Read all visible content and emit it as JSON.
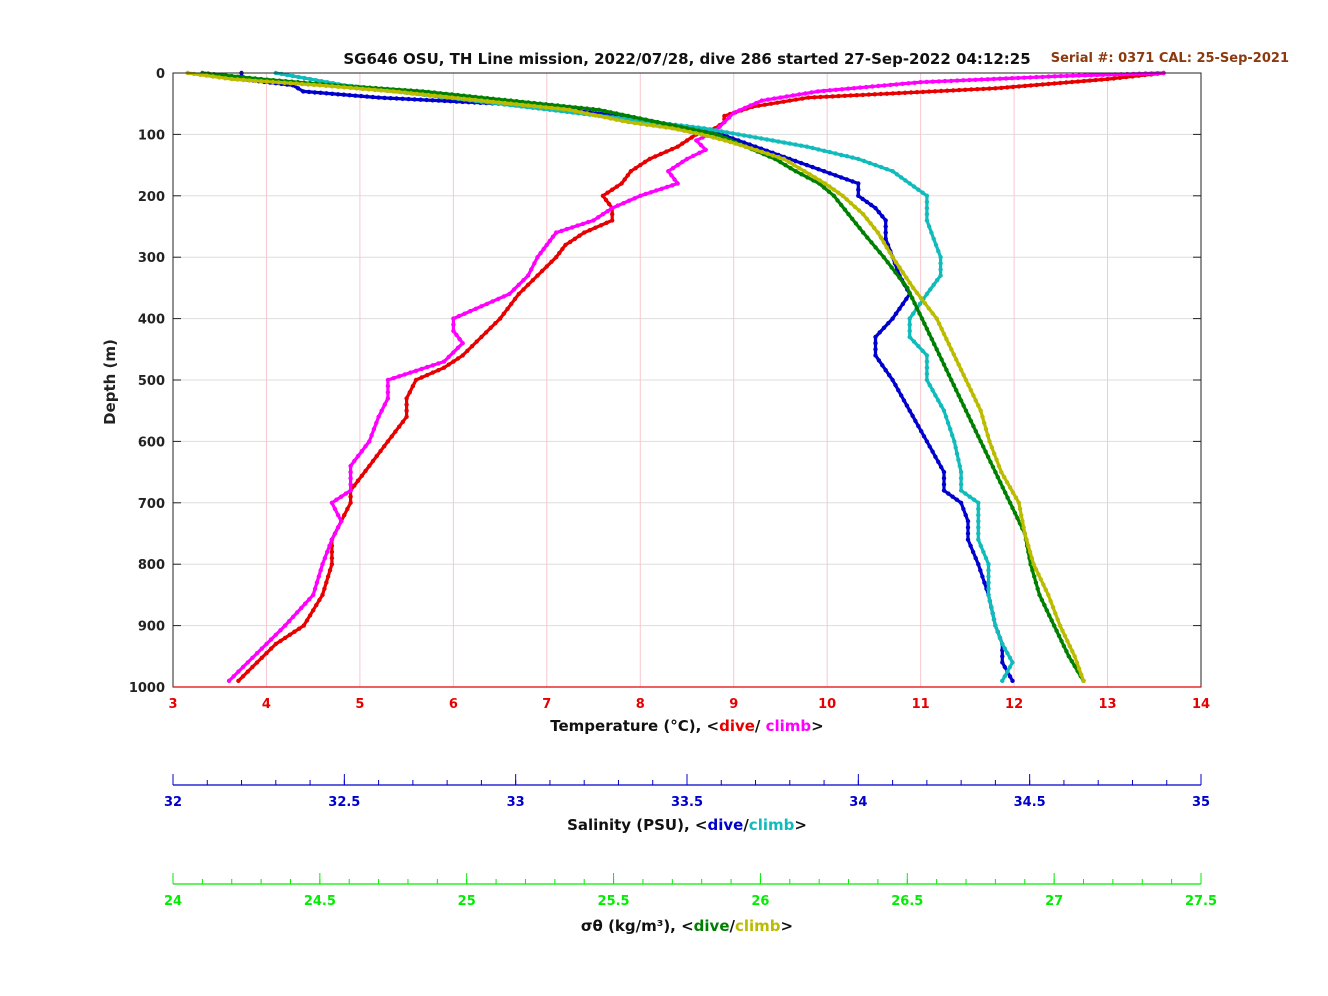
{
  "chart_data": {
    "type": "line",
    "title": "SG646 OSU, TH Line mission, 2022/07/28, dive 286 started 27-Sep-2022 04:12:25",
    "serial_text": "Serial #: 0371  CAL: 25-Sep-2021",
    "ylabel": "Depth (m)",
    "ylim": [
      0,
      1000
    ],
    "y_reversed": true,
    "y_ticks": [
      0,
      100,
      200,
      300,
      400,
      500,
      600,
      700,
      800,
      900,
      1000
    ],
    "grid": true,
    "axes": [
      {
        "id": "temperature",
        "label_prefix": "Temperature (°C), <",
        "label_dive": "dive",
        "label_sep": "/ ",
        "label_climb": "climb",
        "label_suffix": ">",
        "color": "#e60000",
        "range": [
          3,
          14
        ],
        "ticks": [
          3,
          4,
          5,
          6,
          7,
          8,
          9,
          10,
          11,
          12,
          13,
          14
        ]
      },
      {
        "id": "salinity",
        "label_prefix": "Salinity (PSU), <",
        "label_dive": "dive",
        "label_sep": "/",
        "label_climb": "climb",
        "label_suffix": ">",
        "color": "#0000cc",
        "range": [
          32,
          35
        ],
        "ticks": [
          32,
          32.5,
          33,
          33.5,
          34,
          34.5,
          35
        ]
      },
      {
        "id": "sigma",
        "label_prefix": "σθ (kg/m³), <",
        "label_dive": "dive",
        "label_sep": "/",
        "label_climb": "climb",
        "label_suffix": ">",
        "color": "#00ee00",
        "range": [
          24,
          27.5
        ],
        "ticks": [
          24,
          24.5,
          25,
          25.5,
          26,
          26.5,
          27,
          27.5
        ]
      }
    ],
    "series": [
      {
        "label": "dive",
        "axis": "temperature",
        "color": "#e60000",
        "depth": [
          0,
          10,
          25,
          40,
          55,
          70,
          80,
          90,
          100,
          110,
          120,
          140,
          160,
          180,
          200,
          220,
          240,
          260,
          280,
          300,
          330,
          360,
          400,
          430,
          460,
          480,
          500,
          530,
          560,
          600,
          640,
          680,
          700,
          730,
          760,
          800,
          850,
          900,
          930,
          960,
          990
        ],
        "values": [
          13.6,
          13.0,
          11.8,
          9.8,
          9.2,
          8.9,
          8.9,
          8.8,
          8.6,
          8.5,
          8.4,
          8.1,
          7.9,
          7.8,
          7.6,
          7.7,
          7.7,
          7.4,
          7.2,
          7.1,
          6.9,
          6.7,
          6.5,
          6.3,
          6.1,
          5.9,
          5.6,
          5.5,
          5.5,
          5.3,
          5.1,
          4.9,
          4.9,
          4.8,
          4.7,
          4.7,
          4.6,
          4.4,
          4.1,
          3.9,
          3.7
        ]
      },
      {
        "label": "climb",
        "axis": "temperature",
        "color": "#ff00ff",
        "depth": [
          0,
          5,
          15,
          30,
          45,
          65,
          80,
          95,
          110,
          125,
          140,
          160,
          180,
          200,
          220,
          240,
          260,
          280,
          300,
          330,
          360,
          400,
          420,
          440,
          470,
          500,
          530,
          560,
          600,
          640,
          680,
          700,
          730,
          760,
          800,
          850,
          900,
          930,
          960,
          990
        ],
        "values": [
          13.6,
          12.5,
          11.0,
          9.9,
          9.3,
          9.0,
          8.9,
          8.8,
          8.6,
          8.7,
          8.5,
          8.3,
          8.4,
          8.0,
          7.7,
          7.5,
          7.1,
          7.0,
          6.9,
          6.8,
          6.6,
          6.0,
          6.0,
          6.1,
          5.9,
          5.3,
          5.3,
          5.2,
          5.1,
          4.9,
          4.9,
          4.7,
          4.8,
          4.7,
          4.6,
          4.5,
          4.2,
          4.0,
          3.8,
          3.6
        ]
      },
      {
        "label": "dive",
        "axis": "salinity",
        "color": "#0000cc",
        "depth": [
          0,
          10,
          20,
          30,
          40,
          50,
          60,
          70,
          80,
          90,
          100,
          110,
          120,
          140,
          160,
          180,
          200,
          220,
          240,
          270,
          300,
          330,
          360,
          400,
          430,
          460,
          500,
          550,
          600,
          650,
          680,
          700,
          730,
          760,
          800,
          850,
          900,
          930,
          960,
          990
        ],
        "values": [
          32.2,
          32.2,
          32.35,
          32.38,
          32.6,
          32.95,
          33.15,
          33.3,
          33.4,
          33.5,
          33.6,
          33.65,
          33.7,
          33.8,
          33.9,
          34.0,
          34.0,
          34.05,
          34.08,
          34.08,
          34.1,
          34.12,
          34.15,
          34.1,
          34.05,
          34.05,
          34.1,
          34.15,
          34.2,
          34.25,
          34.25,
          34.3,
          34.32,
          34.32,
          34.35,
          34.38,
          34.4,
          34.42,
          34.42,
          34.45
        ]
      },
      {
        "label": "climb",
        "axis": "salinity",
        "color": "#11bbbb",
        "depth": [
          0,
          10,
          20,
          30,
          40,
          50,
          60,
          70,
          80,
          90,
          100,
          110,
          120,
          140,
          160,
          180,
          200,
          220,
          240,
          270,
          300,
          330,
          360,
          400,
          430,
          460,
          500,
          550,
          600,
          650,
          680,
          700,
          730,
          760,
          800,
          850,
          900,
          930,
          960,
          990
        ],
        "values": [
          32.3,
          32.4,
          32.5,
          32.65,
          32.8,
          32.95,
          33.1,
          33.25,
          33.4,
          33.55,
          33.65,
          33.75,
          33.85,
          34.0,
          34.1,
          34.15,
          34.2,
          34.2,
          34.2,
          34.22,
          34.24,
          34.24,
          34.2,
          34.15,
          34.15,
          34.2,
          34.2,
          34.25,
          34.28,
          34.3,
          34.3,
          34.35,
          34.35,
          34.35,
          34.38,
          34.38,
          34.4,
          34.42,
          34.45,
          34.42
        ]
      },
      {
        "label": "dive",
        "axis": "sigma",
        "color": "#008000",
        "depth": [
          0,
          10,
          20,
          30,
          40,
          50,
          60,
          70,
          80,
          90,
          100,
          110,
          120,
          140,
          160,
          180,
          200,
          230,
          260,
          300,
          350,
          400,
          450,
          500,
          550,
          600,
          650,
          700,
          750,
          800,
          850,
          900,
          950,
          990
        ],
        "values": [
          24.1,
          24.3,
          24.55,
          24.85,
          25.05,
          25.25,
          25.45,
          25.55,
          25.65,
          25.75,
          25.85,
          25.9,
          25.95,
          26.05,
          26.12,
          26.2,
          26.25,
          26.3,
          26.35,
          26.42,
          26.5,
          26.55,
          26.6,
          26.65,
          26.7,
          26.75,
          26.8,
          26.85,
          26.9,
          26.92,
          26.95,
          27.0,
          27.05,
          27.1
        ]
      },
      {
        "label": "climb",
        "axis": "sigma",
        "color": "#bbbb00",
        "depth": [
          0,
          10,
          20,
          30,
          40,
          50,
          60,
          70,
          80,
          90,
          100,
          110,
          120,
          140,
          160,
          180,
          200,
          230,
          260,
          300,
          350,
          400,
          450,
          500,
          550,
          600,
          650,
          700,
          750,
          800,
          850,
          900,
          950,
          990
        ],
        "values": [
          24.05,
          24.2,
          24.5,
          24.75,
          24.95,
          25.15,
          25.35,
          25.45,
          25.55,
          25.7,
          25.8,
          25.88,
          25.95,
          26.08,
          26.15,
          26.22,
          26.28,
          26.35,
          26.4,
          26.45,
          26.52,
          26.6,
          26.65,
          26.7,
          26.75,
          26.78,
          26.82,
          26.88,
          26.9,
          26.93,
          26.98,
          27.02,
          27.07,
          27.1
        ]
      }
    ]
  }
}
